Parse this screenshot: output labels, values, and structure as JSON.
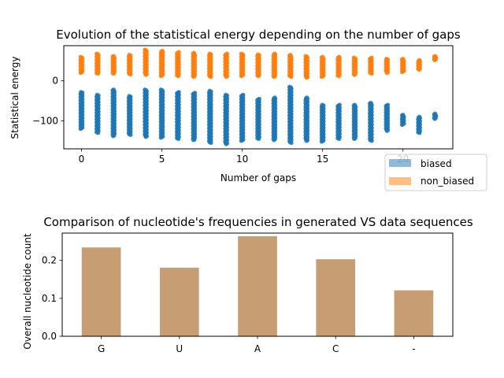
{
  "chart_data": [
    {
      "type": "scatter",
      "title": "Evolution of the statistical energy depending on the number of gaps",
      "xlabel": "Number of gaps",
      "ylabel": "Statistical energy",
      "xlim": [
        -1.1,
        23.1
      ],
      "ylim": [
        -170,
        88
      ],
      "xticks": [
        0,
        5,
        10,
        15,
        20
      ],
      "yticks": [
        0,
        -100
      ],
      "xtick_labels": [
        "0",
        "5",
        "10",
        "15",
        "20"
      ],
      "ytick_labels": [
        "0",
        "−100"
      ],
      "legend_position": "lower-right",
      "series": [
        {
          "name": "biased",
          "color": "#1f77b4",
          "points_by_x": [
            {
              "x": 0,
              "min": -120,
              "max": -28
            },
            {
              "x": 1,
              "min": -130,
              "max": -35
            },
            {
              "x": 2,
              "min": -138,
              "max": -22
            },
            {
              "x": 3,
              "min": -135,
              "max": -38
            },
            {
              "x": 4,
              "min": -140,
              "max": -22
            },
            {
              "x": 5,
              "min": -142,
              "max": -22
            },
            {
              "x": 6,
              "min": -145,
              "max": -28
            },
            {
              "x": 7,
              "min": -148,
              "max": -30
            },
            {
              "x": 8,
              "min": -155,
              "max": -25
            },
            {
              "x": 9,
              "min": -158,
              "max": -35
            },
            {
              "x": 10,
              "min": -150,
              "max": -35
            },
            {
              "x": 11,
              "min": -145,
              "max": -45
            },
            {
              "x": 12,
              "min": -148,
              "max": -42
            },
            {
              "x": 13,
              "min": -155,
              "max": -15
            },
            {
              "x": 14,
              "min": -150,
              "max": -42
            },
            {
              "x": 15,
              "min": -152,
              "max": -60
            },
            {
              "x": 16,
              "min": -145,
              "max": -60
            },
            {
              "x": 17,
              "min": -145,
              "max": -60
            },
            {
              "x": 18,
              "min": -150,
              "max": -55
            },
            {
              "x": 19,
              "min": -125,
              "max": -60
            },
            {
              "x": 20,
              "min": -110,
              "max": -85
            },
            {
              "x": 21,
              "min": -130,
              "max": -90
            },
            {
              "x": 22,
              "min": -95,
              "max": -82
            }
          ]
        },
        {
          "name": "non_biased",
          "color": "#ff7f0e",
          "points_by_x": [
            {
              "x": 0,
              "min": 20,
              "max": 60
            },
            {
              "x": 1,
              "min": 18,
              "max": 68
            },
            {
              "x": 2,
              "min": 18,
              "max": 62
            },
            {
              "x": 3,
              "min": 16,
              "max": 65
            },
            {
              "x": 4,
              "min": 15,
              "max": 78
            },
            {
              "x": 5,
              "min": 12,
              "max": 75
            },
            {
              "x": 6,
              "min": 12,
              "max": 72
            },
            {
              "x": 7,
              "min": 10,
              "max": 70
            },
            {
              "x": 8,
              "min": 10,
              "max": 68
            },
            {
              "x": 9,
              "min": 10,
              "max": 68
            },
            {
              "x": 10,
              "min": 12,
              "max": 68
            },
            {
              "x": 11,
              "min": 12,
              "max": 66
            },
            {
              "x": 12,
              "min": 10,
              "max": 68
            },
            {
              "x": 13,
              "min": 10,
              "max": 65
            },
            {
              "x": 14,
              "min": 8,
              "max": 62
            },
            {
              "x": 15,
              "min": 10,
              "max": 60
            },
            {
              "x": 16,
              "min": 12,
              "max": 60
            },
            {
              "x": 17,
              "min": 15,
              "max": 58
            },
            {
              "x": 18,
              "min": 18,
              "max": 58
            },
            {
              "x": 19,
              "min": 20,
              "max": 55
            },
            {
              "x": 20,
              "min": 22,
              "max": 55
            },
            {
              "x": 21,
              "min": 28,
              "max": 52
            },
            {
              "x": 22,
              "min": 52,
              "max": 62
            }
          ]
        }
      ]
    },
    {
      "type": "bar",
      "title": "Comparison of nucleotide's frequencies in generated VS data sequences",
      "xlabel": "",
      "ylabel": "Overall nucleotide count",
      "ylim": [
        0,
        0.272
      ],
      "yticks": [
        0.0,
        0.1,
        0.2
      ],
      "ytick_labels": [
        "0.0",
        "0.1",
        "0.2"
      ],
      "categories": [
        "G",
        "U",
        "A",
        "C",
        "-"
      ],
      "series": [
        {
          "name": "biased",
          "color": "#1f77b4",
          "values": [
            0.234,
            0.181,
            0.264,
            0.203,
            0.121
          ]
        },
        {
          "name": "non_biased",
          "color": "#ff7f0e",
          "values": [
            0.234,
            0.18,
            0.263,
            0.203,
            0.121
          ]
        }
      ]
    }
  ]
}
